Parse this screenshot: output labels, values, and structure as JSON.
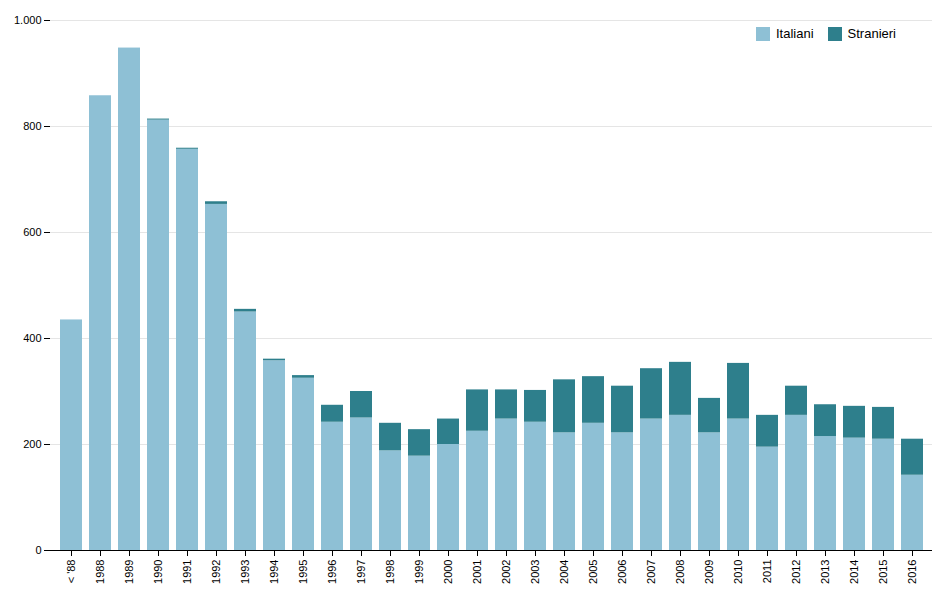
{
  "chart_data": {
    "type": "bar",
    "stacked": true,
    "categories": [
      "< '88",
      "1988",
      "1989",
      "1990",
      "1991",
      "1992",
      "1993",
      "1994",
      "1995",
      "1996",
      "1997",
      "1998",
      "1999",
      "2000",
      "2001",
      "2002",
      "2003",
      "2004",
      "2005",
      "2006",
      "2007",
      "2008",
      "2009",
      "2010",
      "2011",
      "2012",
      "2013",
      "2014",
      "2015",
      "2016"
    ],
    "series": [
      {
        "name": "Italiani",
        "color": "#8ec0d5",
        "values": [
          435,
          858,
          948,
          812,
          757,
          653,
          450,
          358,
          325,
          242,
          250,
          188,
          178,
          200,
          225,
          248,
          242,
          222,
          240,
          222,
          248,
          255,
          222,
          248,
          195,
          255,
          215,
          212,
          210,
          142
        ]
      },
      {
        "name": "Stranieri",
        "color": "#2e7f8c",
        "values": [
          0,
          0,
          0,
          2,
          2,
          5,
          5,
          3,
          5,
          32,
          50,
          52,
          50,
          48,
          78,
          55,
          60,
          100,
          88,
          88,
          95,
          100,
          65,
          105,
          60,
          55,
          60,
          60,
          60,
          68
        ]
      }
    ],
    "ylim": [
      0,
      1000
    ],
    "yticks": [
      0,
      200,
      400,
      600,
      800,
      {
        "value": 1000,
        "label": "1.000"
      }
    ],
    "grid": true,
    "legend": "upper right"
  }
}
